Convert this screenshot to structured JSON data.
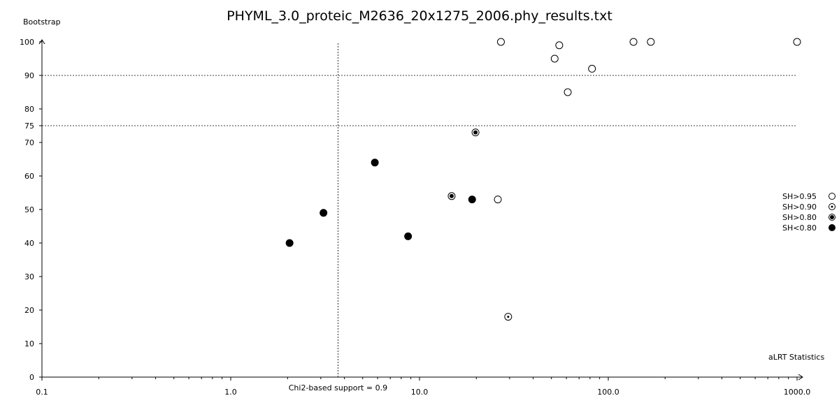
{
  "chart_data": {
    "type": "scatter",
    "title": "PHYML_3.0_proteic_M2636_20x1275_2006.phy_results.txt",
    "xlabel": "aLRT Statistics",
    "ylabel": "Bootstrap",
    "x_scale": "log",
    "xlim": [
      0.1,
      1000.0
    ],
    "ylim": [
      0,
      100
    ],
    "x_ticks": [
      "0.1",
      "1.0",
      "10.0",
      "100.0",
      "1000.0"
    ],
    "y_ticks": [
      "0",
      "10",
      "20",
      "30",
      "40",
      "50",
      "60",
      "70",
      "75",
      "80",
      "90",
      "100"
    ],
    "reference_lines": {
      "horizontal": [
        90,
        75
      ],
      "vertical": [
        {
          "x": 3.7,
          "label": "Chi2-based support = 0.9"
        }
      ]
    },
    "legend": {
      "placement": "right",
      "entries": [
        {
          "label": "SH>0.95",
          "marker": "open-circle"
        },
        {
          "label": "SH>0.90",
          "marker": "circle-small-dot"
        },
        {
          "label": "SH>0.80",
          "marker": "circle-large-dot"
        },
        {
          "label": "SH<0.80",
          "marker": "filled-circle"
        }
      ]
    },
    "series": [
      {
        "name": "SH>0.95",
        "marker": "open-circle",
        "points": [
          {
            "x": 27,
            "y": 100
          },
          {
            "x": 55,
            "y": 99
          },
          {
            "x": 52,
            "y": 95
          },
          {
            "x": 82,
            "y": 92
          },
          {
            "x": 136,
            "y": 100
          },
          {
            "x": 168,
            "y": 100
          },
          {
            "x": 1000,
            "y": 100
          },
          {
            "x": 61,
            "y": 85
          },
          {
            "x": 26,
            "y": 53
          }
        ]
      },
      {
        "name": "SH>0.90",
        "marker": "circle-small-dot",
        "points": [
          {
            "x": 29.5,
            "y": 18
          }
        ]
      },
      {
        "name": "SH>0.80",
        "marker": "circle-large-dot",
        "points": [
          {
            "x": 19.8,
            "y": 73
          },
          {
            "x": 14.8,
            "y": 54
          }
        ]
      },
      {
        "name": "SH<0.80",
        "marker": "filled-circle",
        "points": [
          {
            "x": 5.8,
            "y": 64
          },
          {
            "x": 3.1,
            "y": 49
          },
          {
            "x": 2.05,
            "y": 40
          },
          {
            "x": 8.7,
            "y": 42
          },
          {
            "x": 19,
            "y": 53
          }
        ]
      }
    ]
  }
}
